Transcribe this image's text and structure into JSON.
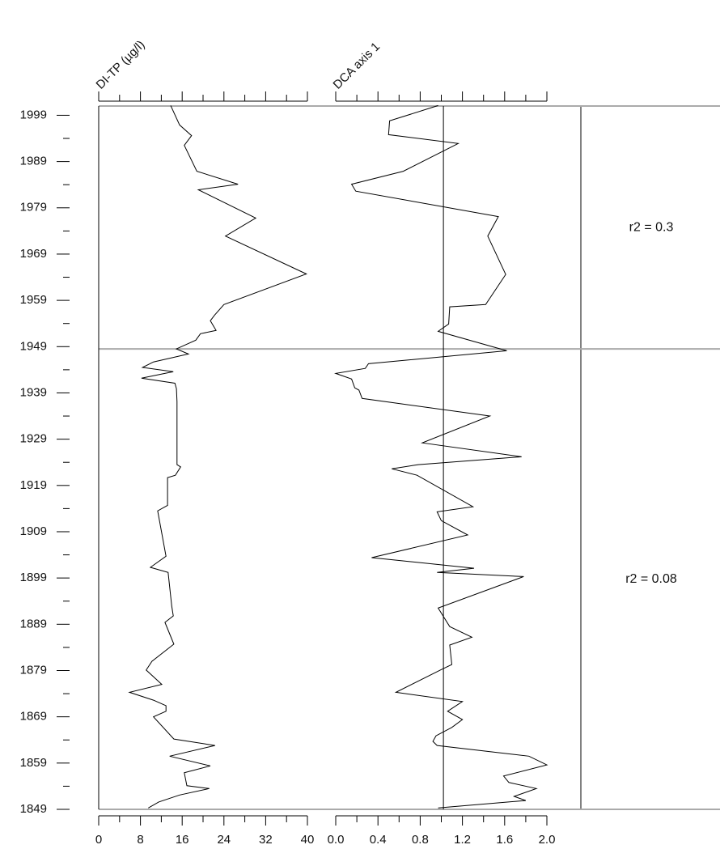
{
  "chart_data": {
    "type": "stratigraphic",
    "ylim": [
      1849,
      2001
    ],
    "yticks": [
      1849,
      1859,
      1869,
      1879,
      1889,
      1899,
      1909,
      1919,
      1929,
      1939,
      1949,
      1959,
      1969,
      1979,
      1989,
      1999
    ],
    "yticks_minor": [
      1854,
      1864,
      1874,
      1884,
      1894,
      1904,
      1914,
      1924,
      1934,
      1944,
      1954,
      1964,
      1974,
      1984,
      1994
    ],
    "zone_boundaries": [
      1948.5
    ],
    "panels": [
      {
        "title": "DI-TP (µg/l)",
        "color": "#000000",
        "xlim": [
          0,
          40
        ],
        "xticks": [
          0,
          8,
          16,
          24,
          32,
          40
        ],
        "xticks_minor": [
          4,
          12,
          20,
          28,
          36
        ],
        "years": [
          2001.1,
          1996.9,
          1994.6,
          1992.5,
          1986.9,
          1984.1,
          1982.9,
          1976.8,
          1972.9,
          1964.7,
          1958.1,
          1955.8,
          1954.6,
          1952.5,
          1951.8,
          1950.4,
          1948.5,
          1947.4,
          1945.7,
          1944.5,
          1943.6,
          1942.2,
          1941.1,
          1939.9,
          1937.1,
          1923.5,
          1923.0,
          1921.2,
          1920.7,
          1914.7,
          1913.5,
          1903.7,
          1901.3,
          1900.2,
          1892.9,
          1890.8,
          1889.4,
          1884.7,
          1881.0,
          1879.1,
          1876.0,
          1874.3,
          1872.6,
          1871.4,
          1870.2,
          1869.0,
          1864.2,
          1862.8,
          1860.5,
          1858.4,
          1856.9,
          1854.1,
          1853.5,
          1852.1,
          1850.6,
          1849.3
        ],
        "values": [
          13.8,
          15.5,
          17.8,
          16.4,
          18.8,
          26.7,
          19.1,
          30.1,
          24.3,
          39.8,
          24.0,
          22.2,
          21.4,
          22.5,
          19.5,
          18.6,
          14.9,
          17.2,
          10.5,
          8.4,
          14.3,
          8.2,
          14.6,
          14.9,
          15.0,
          15.0,
          15.7,
          14.7,
          13.2,
          13.2,
          11.3,
          12.9,
          9.9,
          13.3,
          14.0,
          14.3,
          12.7,
          14.4,
          10.2,
          9.1,
          12.1,
          5.9,
          10.5,
          12.9,
          12.9,
          10.5,
          14.4,
          22.3,
          13.6,
          21.4,
          16.4,
          16.9,
          21.2,
          15.5,
          11.5,
          9.5
        ]
      },
      {
        "title": "DCA axis 1",
        "color": "#000000",
        "xlim": [
          0,
          2
        ],
        "xticks": [
          {
            "value": 0,
            "label": "0.0"
          },
          0.4,
          0.8,
          1.2,
          1.6,
          {
            "value": 2,
            "label": "2.0"
          }
        ],
        "xticks_minor": [
          0.2,
          0.6,
          1.0,
          1.4,
          1.8
        ],
        "reference_line": 1.02,
        "years": [
          2001.1,
          1997.8,
          1994.8,
          1992.9,
          1986.9,
          1984.1,
          1982.6,
          1977.1,
          1972.9,
          1964.6,
          1958.1,
          1957.6,
          1953.9,
          1952.3,
          1948.1,
          1945.3,
          1944.3,
          1943.2,
          1942.0,
          1940.1,
          1939.6,
          1937.8,
          1934.0,
          1928.2,
          1925.2,
          1923.5,
          1922.6,
          1921.2,
          1914.4,
          1913.3,
          1911.4,
          1908.3,
          1903.4,
          1901.1,
          1900.2,
          1899.3,
          1892.5,
          1888.5,
          1886.2,
          1884.5,
          1880.3,
          1879.2,
          1874.3,
          1872.3,
          1870.2,
          1868.4,
          1866.7,
          1864.9,
          1863.7,
          1862.8,
          1860.5,
          1858.6,
          1856.2,
          1854.8,
          1853.5,
          1851.8,
          1850.9,
          1849.3
        ],
        "values": [
          0.97,
          0.51,
          0.5,
          1.16,
          0.64,
          0.15,
          0.19,
          1.54,
          1.44,
          1.61,
          1.42,
          1.08,
          1.07,
          0.97,
          1.62,
          0.31,
          0.28,
          0.0,
          0.15,
          0.18,
          0.22,
          0.25,
          1.46,
          0.82,
          1.76,
          0.78,
          0.53,
          0.77,
          1.3,
          0.96,
          1.0,
          1.25,
          0.34,
          1.31,
          0.96,
          1.78,
          0.97,
          1.08,
          1.29,
          1.08,
          1.1,
          1.0,
          0.57,
          1.2,
          1.06,
          1.2,
          1.1,
          0.95,
          0.92,
          0.96,
          1.83,
          2.0,
          1.59,
          1.64,
          1.9,
          1.69,
          1.8,
          0.97
        ]
      }
    ],
    "annotations": [
      "r2 = 0.3",
      "r2 = 0.08"
    ]
  }
}
